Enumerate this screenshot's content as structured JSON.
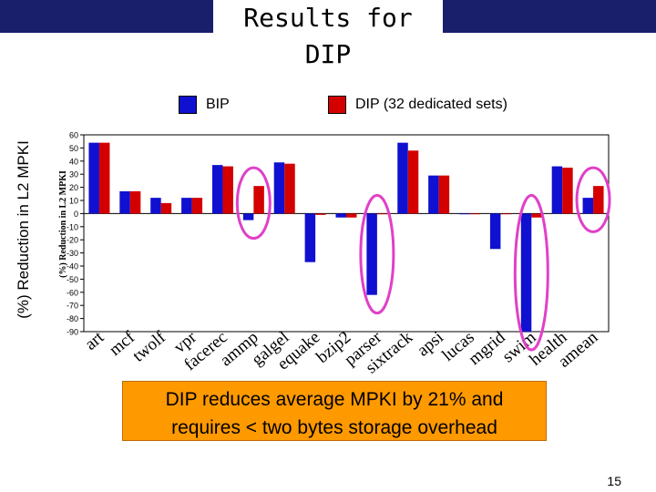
{
  "slide": {
    "title": "Results for DIP",
    "outer_ylabel": "(%) Reduction in L2 MPKI",
    "callout_line1": "DIP reduces average MPKI by 21% and",
    "callout_line2": "requires < two bytes storage overhead",
    "page_number": "15"
  },
  "colors": {
    "bip": "#1010d0",
    "dip": "#d40000",
    "highlight": "#e040c8",
    "title_bar": "#1a1f6b",
    "callout": "#ff9900"
  },
  "chart_data": {
    "type": "bar",
    "ylabel": "(%) Reduction in L2 MPKI",
    "ylim": [
      -90,
      60
    ],
    "yticks": [
      60,
      50,
      40,
      30,
      20,
      10,
      0,
      -10,
      -20,
      -30,
      -40,
      -50,
      -60,
      -70,
      -80,
      -90
    ],
    "categories": [
      "art",
      "mcf",
      "twolf",
      "vpr",
      "facerec",
      "ammp",
      "galgel",
      "equake",
      "bzip2",
      "parser",
      "sixtrack",
      "apsi",
      "lucas",
      "mgrid",
      "swim",
      "health",
      "amean"
    ],
    "series": [
      {
        "name": "BIP",
        "color": "#1010d0",
        "values": [
          54,
          17,
          12,
          12,
          37,
          -5,
          39,
          -37,
          -3,
          -62,
          54,
          29,
          0,
          -27,
          -90,
          36,
          12
        ]
      },
      {
        "name": "DIP (32 dedicated sets)",
        "color": "#d40000",
        "values": [
          54,
          17,
          8,
          12,
          36,
          21,
          38,
          -1,
          -3,
          0,
          48,
          29,
          0,
          0,
          -3,
          35,
          21
        ]
      }
    ],
    "highlighted_categories": [
      "ammp",
      "parser",
      "swim",
      "amean"
    ]
  }
}
